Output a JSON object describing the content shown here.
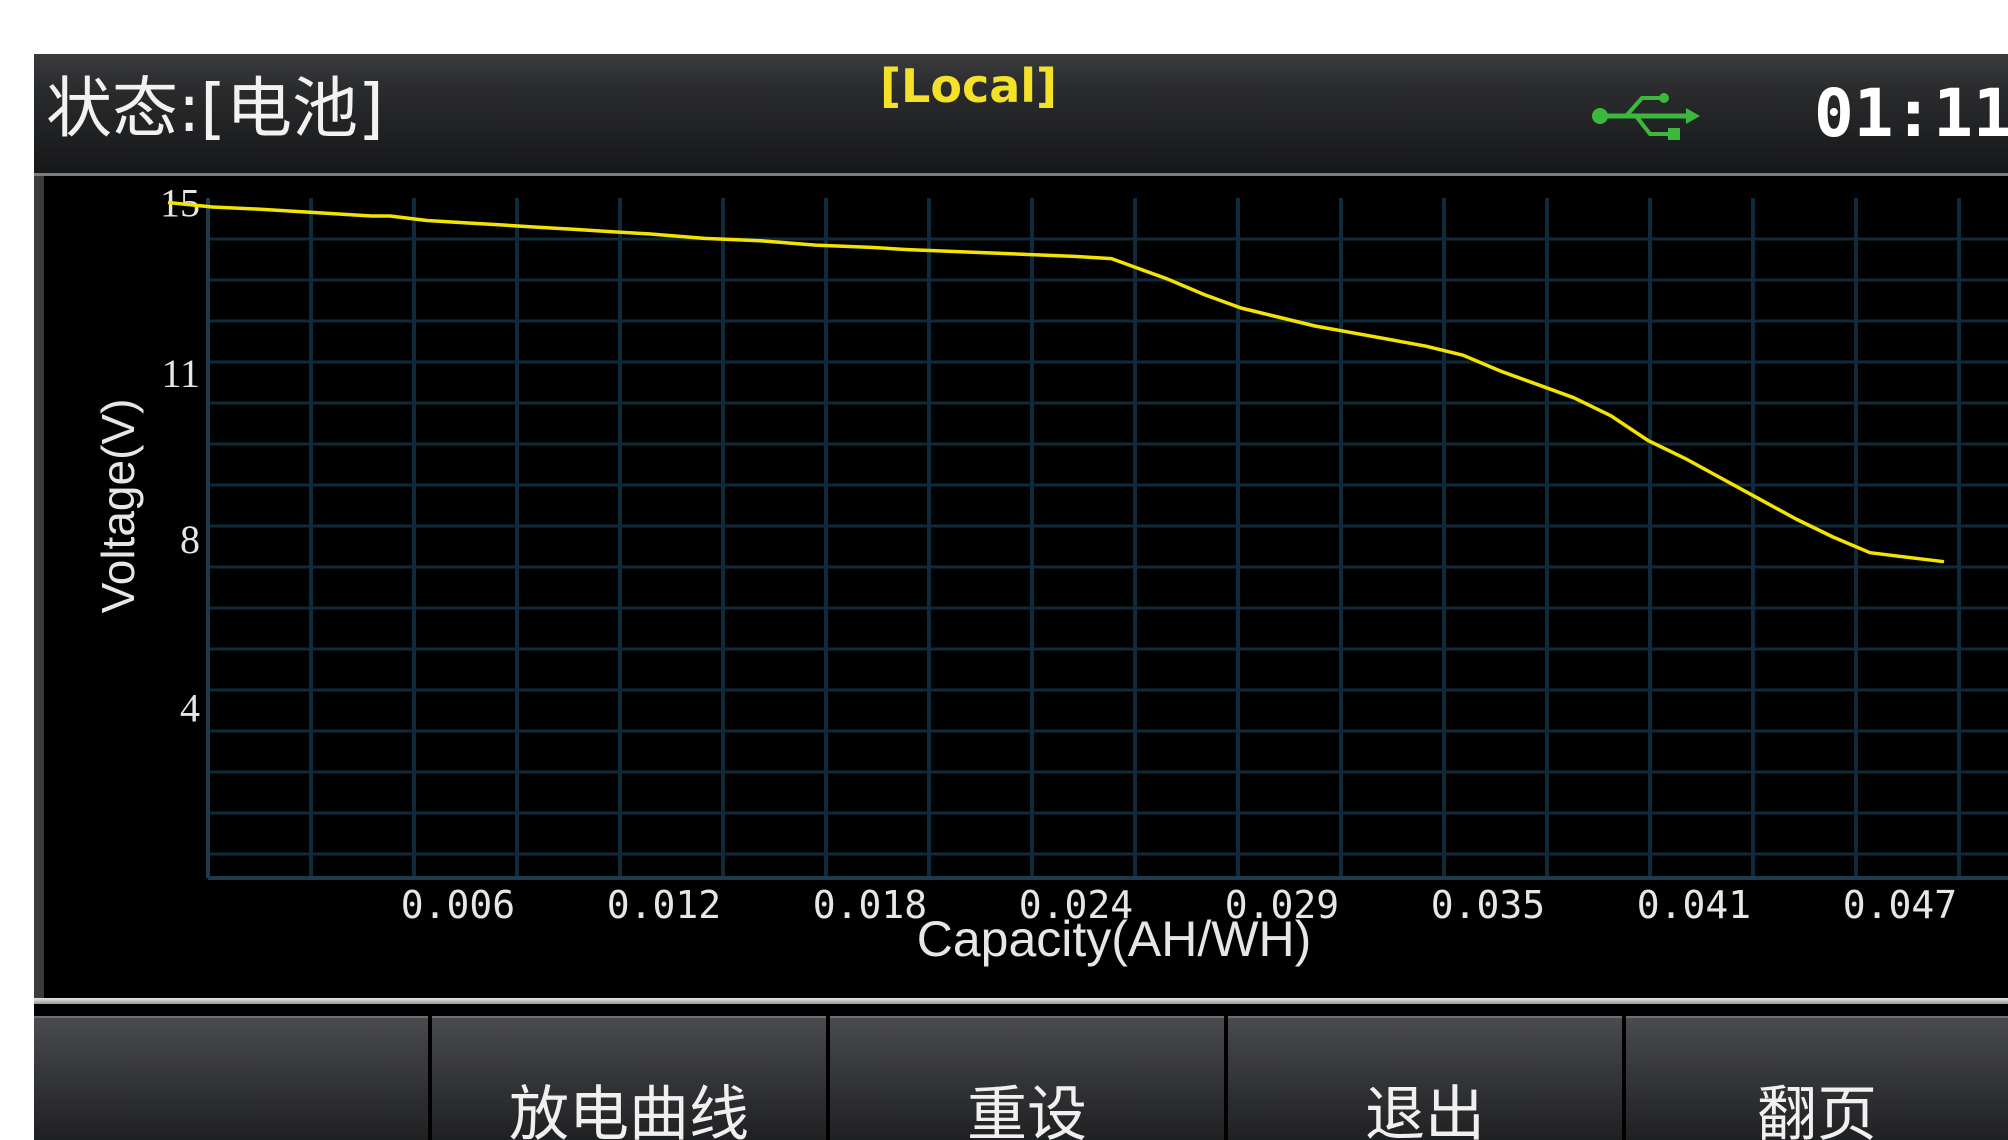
{
  "header": {
    "status_label": "状态:[电池]",
    "mode_label": "[Local]",
    "usb_icon": "usb-icon",
    "clock": "01:11"
  },
  "softkeys": [
    {
      "label": ""
    },
    {
      "label": "放电曲线"
    },
    {
      "label": "重设"
    },
    {
      "label": "退出"
    },
    {
      "label": "翻页"
    }
  ],
  "colors": {
    "curve": "#f2e400",
    "grid": "#0f2a3a",
    "mode_label": "#f4e12a",
    "usb_icon": "#3cb83c"
  },
  "chart_data": {
    "type": "line",
    "xlabel": "Capacity(AH/WH)",
    "ylabel": "Voltage(V)",
    "x_tick_labels": [
      "0.006",
      "0.012",
      "0.018",
      "0.024",
      "0.029",
      "0.035",
      "0.041",
      "0.047"
    ],
    "y_tick_labels": [
      "15",
      "11",
      "8",
      "4"
    ],
    "xlim": [
      0,
      0.05
    ],
    "ylim": [
      0,
      15.1
    ],
    "y_tick_values": [
      15,
      11.2,
      7.5,
      3.75
    ],
    "grid": true,
    "series": [
      {
        "x": [
          0.0,
          0.0012,
          0.0025,
          0.0035,
          0.0045,
          0.0055,
          0.006,
          0.007,
          0.008,
          0.009,
          0.01,
          0.011,
          0.012,
          0.013,
          0.0145,
          0.016,
          0.0175,
          0.019,
          0.02,
          0.0215,
          0.023,
          0.0245,
          0.0255,
          0.026,
          0.0265,
          0.027,
          0.028,
          0.029,
          0.03,
          0.031,
          0.032,
          0.033,
          0.034,
          0.0345,
          0.035,
          0.036,
          0.037,
          0.038,
          0.0385,
          0.039,
          0.04,
          0.041,
          0.042,
          0.043,
          0.044,
          0.045,
          0.046,
          0.048
        ],
        "y": [
          15.0,
          14.9,
          14.85,
          14.8,
          14.75,
          14.7,
          14.7,
          14.6,
          14.55,
          14.5,
          14.45,
          14.4,
          14.35,
          14.3,
          14.2,
          14.15,
          14.05,
          14.0,
          13.95,
          13.9,
          13.85,
          13.8,
          13.75,
          13.6,
          13.45,
          13.3,
          12.95,
          12.65,
          12.45,
          12.25,
          12.1,
          11.95,
          11.8,
          11.7,
          11.6,
          11.25,
          10.95,
          10.65,
          10.45,
          10.25,
          9.7,
          9.3,
          8.85,
          8.4,
          7.95,
          7.55,
          7.2,
          7.0
        ]
      }
    ]
  }
}
